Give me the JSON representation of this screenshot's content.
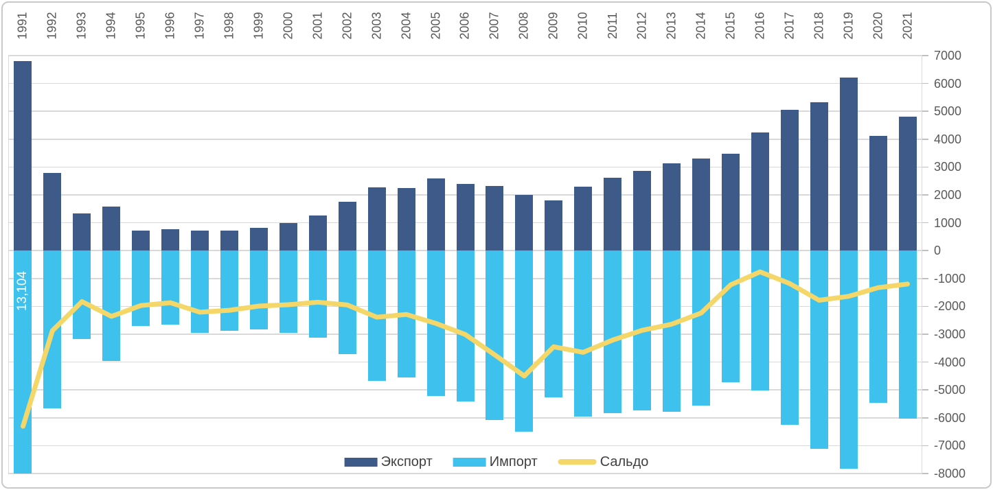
{
  "chart_data": {
    "type": "bar",
    "subtype": "combo-bar-line",
    "title": "",
    "categories": [
      "1991",
      "1992",
      "1993",
      "1994",
      "1995",
      "1996",
      "1997",
      "1998",
      "1999",
      "2000",
      "2001",
      "2002",
      "2003",
      "2004",
      "2005",
      "2006",
      "2007",
      "2008",
      "2009",
      "2010",
      "2011",
      "2012",
      "2013",
      "2014",
      "2015",
      "2016",
      "2017",
      "2018",
      "2019",
      "2020",
      "2021"
    ],
    "series": [
      {
        "name": "Экспорт",
        "type": "bar",
        "direction": "up",
        "color": "#3e5a88",
        "values": [
          6800,
          2780,
          1340,
          1590,
          730,
          780,
          730,
          730,
          830,
          1000,
          1270,
          1760,
          2280,
          2250,
          2600,
          2400,
          2330,
          2010,
          1810,
          2300,
          2620,
          2870,
          3140,
          3310,
          3490,
          4250,
          5060,
          5330,
          6200,
          4130,
          4820
        ]
      },
      {
        "name": "Импорт",
        "type": "bar",
        "direction": "down",
        "color": "#3fc1ee",
        "values": [
          13104,
          5650,
          3170,
          3950,
          2700,
          2650,
          2940,
          2870,
          2820,
          2940,
          3120,
          3710,
          4670,
          4540,
          5210,
          5410,
          6070,
          6510,
          5260,
          5950,
          5830,
          5730,
          5780,
          5550,
          4720,
          5010,
          6240,
          7110,
          7840,
          5460,
          6020
        ]
      },
      {
        "name": "Сальдо",
        "type": "line",
        "color": "#f4d768",
        "values": [
          -6304,
          -2870,
          -1830,
          -2360,
          -1970,
          -1870,
          -2210,
          -2140,
          -1990,
          -1940,
          -1850,
          -1950,
          -2390,
          -2290,
          -2610,
          -3010,
          -3740,
          -4500,
          -3450,
          -3650,
          -3210,
          -2860,
          -2640,
          -2240,
          -1230,
          -760,
          -1180,
          -1780,
          -1640,
          -1330,
          -1200
        ]
      }
    ],
    "annotations": [
      {
        "series": "Импорт",
        "category": "1991",
        "text": "13,104"
      }
    ],
    "y_axis": {
      "position": "right",
      "min": -8000,
      "max": 7000,
      "step": 1000,
      "ticks": [
        7000,
        6000,
        5000,
        4000,
        3000,
        2000,
        1000,
        0,
        -1000,
        -2000,
        -3000,
        -4000,
        -5000,
        -6000,
        -7000,
        -8000
      ]
    },
    "x_axis": {
      "position": "top",
      "label_rotation": -90
    },
    "legend": {
      "position": "bottom",
      "items": [
        "Экспорт",
        "Импорт",
        "Сальдо"
      ]
    },
    "grid": true,
    "colors": {
      "grid": "#d9d9d9",
      "tick": "#bfbfbf",
      "axis_text": "#595959",
      "legend_text": "#404040",
      "annotation_text": "#ffffff",
      "frame_border": "#c9c9c9"
    }
  }
}
